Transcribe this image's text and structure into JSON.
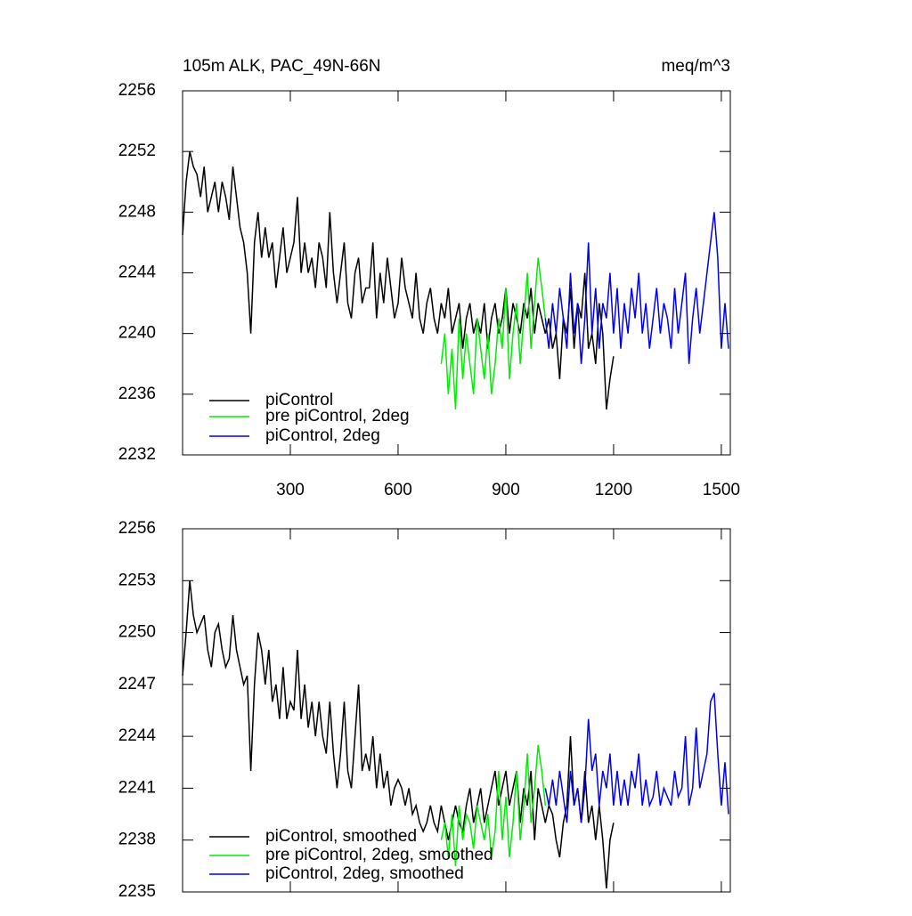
{
  "chart_data": [
    {
      "type": "line",
      "title": "105m ALK, PAC_49N-66N",
      "units": "meq/m^3",
      "xlim": [
        0,
        1525
      ],
      "xticks": [
        300,
        600,
        900,
        1200,
        1500
      ],
      "ylim": [
        2232,
        2256
      ],
      "yticks": [
        2232,
        2236,
        2240,
        2244,
        2248,
        2252,
        2256
      ],
      "legend": "lower left",
      "series": [
        {
          "name": "piControl",
          "color": "#000000",
          "x": [
            0,
            10,
            20,
            30,
            40,
            50,
            60,
            70,
            80,
            90,
            100,
            110,
            120,
            130,
            140,
            150,
            160,
            170,
            180,
            190,
            200,
            210,
            220,
            230,
            240,
            250,
            260,
            270,
            280,
            290,
            300,
            310,
            320,
            330,
            340,
            350,
            360,
            370,
            380,
            390,
            400,
            410,
            420,
            430,
            440,
            450,
            460,
            470,
            480,
            490,
            500,
            510,
            520,
            530,
            540,
            550,
            560,
            570,
            580,
            590,
            600,
            610,
            620,
            630,
            640,
            650,
            660,
            670,
            680,
            690,
            700,
            710,
            720,
            730,
            740,
            750,
            760,
            770,
            780,
            790,
            800,
            810,
            820,
            830,
            840,
            850,
            860,
            870,
            880,
            890,
            900,
            910,
            920,
            930,
            940,
            950,
            960,
            970,
            980,
            990,
            1000,
            1010,
            1020,
            1030,
            1040,
            1050,
            1060,
            1070,
            1080,
            1090,
            1100,
            1110,
            1120,
            1130,
            1140,
            1150,
            1160,
            1170,
            1180,
            1190,
            1200
          ],
          "values": [
            2246.5,
            2250,
            2252,
            2251,
            2250.5,
            2249,
            2251,
            2248,
            2249,
            2250,
            2248,
            2250,
            2249,
            2247.5,
            2251,
            2249,
            2247,
            2246,
            2244,
            2240,
            2246,
            2248,
            2245,
            2247,
            2245,
            2246,
            2243,
            2245,
            2247,
            2244,
            2245,
            2246,
            2249,
            2244,
            2246,
            2244,
            2245,
            2243,
            2246,
            2245,
            2243,
            2248,
            2244,
            2242,
            2244,
            2246,
            2242,
            2241,
            2244,
            2245,
            2242,
            2243,
            2243,
            2246,
            2241,
            2244,
            2242,
            2245,
            2243,
            2241,
            2242,
            2245,
            2243,
            2242,
            2241,
            2244,
            2241,
            2240,
            2242,
            2243,
            2241,
            2240,
            2242,
            2241,
            2243,
            2240,
            2241,
            2242,
            2239,
            2241,
            2242,
            2240,
            2241,
            2240,
            2242,
            2239,
            2241,
            2242,
            2240,
            2241,
            2243,
            2240,
            2242,
            2241,
            2240,
            2242,
            2241,
            2243,
            2240,
            2242,
            2241,
            2240,
            2241,
            2239,
            2240,
            2237,
            2241,
            2240,
            2243,
            2239,
            2242,
            2241,
            2244,
            2239,
            2240,
            2238,
            2242,
            2240,
            2235,
            2237,
            2238.5
          ]
        },
        {
          "name": "pre piControl, 2deg",
          "color": "#00ee00",
          "x": [
            720,
            730,
            740,
            750,
            760,
            770,
            780,
            790,
            800,
            810,
            820,
            830,
            840,
            850,
            860,
            870,
            880,
            890,
            900,
            910,
            920,
            930,
            940,
            950,
            960,
            970,
            980,
            990,
            1000,
            1010
          ],
          "values": [
            2238,
            2240,
            2236,
            2239,
            2235,
            2241,
            2237,
            2240,
            2238,
            2236,
            2241,
            2239,
            2237,
            2240,
            2236,
            2238,
            2241,
            2239,
            2243,
            2237,
            2240,
            2242,
            2238,
            2241,
            2244,
            2239,
            2242,
            2245,
            2243,
            2241
          ]
        },
        {
          "name": "piControl, 2deg",
          "color": "#0000ee",
          "x": [
            1010,
            1020,
            1030,
            1040,
            1050,
            1060,
            1070,
            1080,
            1090,
            1100,
            1110,
            1120,
            1130,
            1140,
            1150,
            1160,
            1170,
            1180,
            1190,
            1200,
            1210,
            1220,
            1230,
            1240,
            1250,
            1260,
            1270,
            1280,
            1290,
            1300,
            1310,
            1320,
            1330,
            1340,
            1350,
            1360,
            1370,
            1380,
            1390,
            1400,
            1410,
            1420,
            1430,
            1440,
            1450,
            1460,
            1470,
            1480,
            1490,
            1500,
            1510,
            1520
          ],
          "values": [
            2241,
            2239,
            2242,
            2240,
            2243,
            2241,
            2239,
            2244,
            2240,
            2242,
            2238,
            2241,
            2246,
            2240,
            2243,
            2239,
            2242,
            2241,
            2244,
            2240,
            2243,
            2239,
            2242,
            2240,
            2243,
            2241,
            2244,
            2240,
            2242,
            2239,
            2241,
            2243,
            2240,
            2242,
            2241,
            2239,
            2243,
            2240,
            2242,
            2244,
            2238,
            2241,
            2243,
            2240,
            2242,
            2244,
            2246,
            2248,
            2245,
            2239,
            2242,
            2239
          ]
        }
      ]
    },
    {
      "type": "line",
      "xlim": [
        0,
        1525
      ],
      "ylim": [
        2235,
        2256
      ],
      "yticks": [
        2235,
        2238,
        2241,
        2244,
        2247,
        2250,
        2253,
        2256
      ],
      "legend": "lower left",
      "series": [
        {
          "name": "piControl, smoothed",
          "color": "#000000",
          "x": [
            0,
            10,
            20,
            30,
            40,
            50,
            60,
            70,
            80,
            90,
            100,
            110,
            120,
            130,
            140,
            150,
            160,
            170,
            180,
            190,
            200,
            210,
            220,
            230,
            240,
            250,
            260,
            270,
            280,
            290,
            300,
            310,
            320,
            330,
            340,
            350,
            360,
            370,
            380,
            390,
            400,
            410,
            420,
            430,
            440,
            450,
            460,
            470,
            480,
            490,
            500,
            510,
            520,
            530,
            540,
            550,
            560,
            570,
            580,
            590,
            600,
            610,
            620,
            630,
            640,
            650,
            660,
            670,
            680,
            690,
            700,
            710,
            720,
            730,
            740,
            750,
            760,
            770,
            780,
            790,
            800,
            810,
            820,
            830,
            840,
            850,
            860,
            870,
            880,
            890,
            900,
            910,
            920,
            930,
            940,
            950,
            960,
            970,
            980,
            990,
            1000,
            1010,
            1020,
            1030,
            1040,
            1050,
            1060,
            1070,
            1080,
            1090,
            1100,
            1110,
            1120,
            1130,
            1140,
            1150,
            1160,
            1170,
            1180,
            1190,
            1200
          ],
          "values": [
            2247.5,
            2250,
            2253,
            2251,
            2250,
            2250.5,
            2251,
            2249,
            2248,
            2250,
            2250.5,
            2249,
            2248,
            2248.5,
            2251,
            2249,
            2248,
            2247,
            2247.5,
            2242,
            2247,
            2250,
            2249,
            2247,
            2249,
            2246,
            2247,
            2245,
            2248,
            2245,
            2246,
            2245.5,
            2249,
            2245,
            2247,
            2244.5,
            2246,
            2244,
            2246,
            2244,
            2243,
            2246,
            2243,
            2241,
            2243,
            2246,
            2242,
            2241,
            2244,
            2247,
            2242,
            2243,
            2242,
            2244,
            2241,
            2243,
            2241,
            2242,
            2240,
            2241,
            2241.5,
            2241,
            2240,
            2241,
            2239.5,
            2240,
            2239,
            2238.5,
            2239,
            2240,
            2239,
            2238.5,
            2240,
            2239,
            2238,
            2239,
            2240,
            2239,
            2238.5,
            2240,
            2241,
            2239,
            2240,
            2241,
            2239,
            2240,
            2241,
            2242,
            2240,
            2241,
            2242,
            2240,
            2241,
            2242,
            2239,
            2241,
            2240,
            2242,
            2238,
            2241,
            2240,
            2239,
            2240,
            2239.5,
            2238,
            2237,
            2239,
            2240,
            2244,
            2240,
            2241,
            2239,
            2242,
            2239,
            2240,
            2238,
            2240,
            2238,
            2235.2,
            2238,
            2239
          ]
        },
        {
          "name": "pre piControl, 2deg, smoothed",
          "color": "#00ee00",
          "x": [
            720,
            730,
            740,
            750,
            760,
            770,
            780,
            790,
            800,
            810,
            820,
            830,
            840,
            850,
            860,
            870,
            880,
            890,
            900,
            910,
            920,
            930,
            940,
            950,
            960,
            970,
            980,
            990,
            1000,
            1010
          ],
          "values": [
            2238,
            2239,
            2237,
            2239.5,
            2236.5,
            2240,
            2238,
            2239.5,
            2239,
            2237.5,
            2240,
            2239,
            2238,
            2239.5,
            2237,
            2238.5,
            2242,
            2238,
            2240.5,
            2237,
            2239,
            2242,
            2238,
            2240,
            2243,
            2239,
            2241,
            2243.5,
            2242,
            2240
          ]
        },
        {
          "name": "piControl, 2deg, smoothed",
          "color": "#0000ee",
          "x": [
            1010,
            1020,
            1030,
            1040,
            1050,
            1060,
            1070,
            1080,
            1090,
            1100,
            1110,
            1120,
            1130,
            1140,
            1150,
            1160,
            1170,
            1180,
            1190,
            1200,
            1210,
            1220,
            1230,
            1240,
            1250,
            1260,
            1270,
            1280,
            1290,
            1300,
            1310,
            1320,
            1330,
            1340,
            1350,
            1360,
            1370,
            1380,
            1390,
            1400,
            1410,
            1420,
            1430,
            1440,
            1450,
            1460,
            1470,
            1480,
            1490,
            1500,
            1510,
            1520
          ],
          "values": [
            2241,
            2240,
            2241.5,
            2240,
            2242,
            2240.5,
            2239,
            2242,
            2240,
            2241,
            2239,
            2241,
            2245,
            2242,
            2243,
            2240,
            2242,
            2241,
            2243,
            2240,
            2242,
            2240,
            2241.5,
            2240,
            2242,
            2241,
            2243,
            2240,
            2241.5,
            2240,
            2240.5,
            2242,
            2240,
            2241,
            2240.5,
            2240,
            2242,
            2240.5,
            2241,
            2244,
            2240,
            2241,
            2244.5,
            2241,
            2242,
            2243,
            2246,
            2246.5,
            2243,
            2240,
            2242.5,
            2239.5
          ]
        }
      ]
    }
  ]
}
